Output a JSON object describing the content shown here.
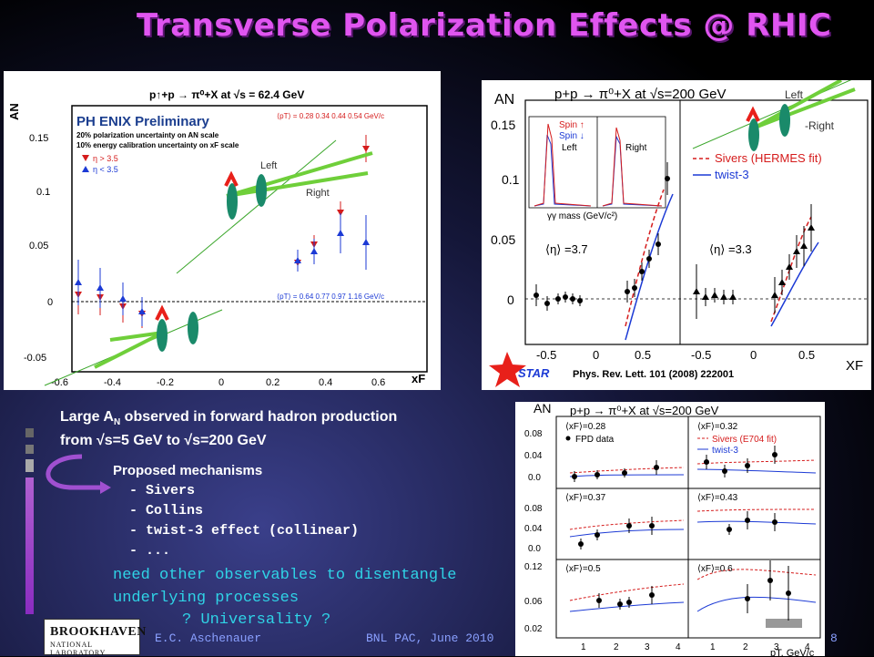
{
  "slide": {
    "title": "Transverse Polarization Effects @ RHIC",
    "footer_author": "E.C. Aschenauer",
    "footer_event": "BNL PAC, June 2010",
    "page_number": "8",
    "logo_main": "BROOKHAVEN",
    "logo_sub": "NATIONAL LABORATORY"
  },
  "bullets": {
    "line1": "Large A",
    "line1_sub": "N",
    "line1_rest": " observed in forward hadron production",
    "line2": "from √s=5 GeV to √s=200 GeV",
    "mech_title": "Proposed mechanisms",
    "mech_items": [
      "- Sivers",
      "- Collins",
      "- twist-3 effect (collinear)",
      "- ..."
    ],
    "need1": "need other observables to disentangle",
    "need2": "underlying processes",
    "universality": "? Universality ?"
  },
  "phenix": {
    "title": "p↑+p → π⁰+X at √s = 62.4 GeV",
    "logo": "PH ENIX Preliminary",
    "note1": "20% polarization uncertainty on AN scale",
    "note2": "10% energy calibration uncertainty on xF scale",
    "legend_eta_hi": "η > 3.5",
    "legend_eta_lo": "η < 3.5",
    "pt_top": "⟨pT⟩ = 0.28  0.34  0.44  0.54 GeV/c",
    "pt_bot": "⟨pT⟩ = 0.64  0.77  0.97  1.16 GeV/c",
    "ylabel": "AN",
    "xlabel": "xF",
    "left_label": "Left",
    "right_label": "Right",
    "x_ticks": [
      "-0.6",
      "-0.4",
      "-0.2",
      "0",
      "0.2",
      "0.4",
      "0.6"
    ],
    "y_ticks": [
      "-0.05",
      "0",
      "0.05",
      "0.1",
      "0.15"
    ]
  },
  "star": {
    "title": "p+p → π⁰+X at √s=200 GeV",
    "ylabel": "AN",
    "xlabel": "XF",
    "inset_legend_up": "Spin ↑",
    "inset_legend_down": "Spin ↓",
    "inset_left": "Left",
    "inset_right": "Right",
    "inset_xlabel": "γγ mass (GeV/c²)",
    "eta_left": "⟨η⟩ =3.7",
    "eta_right": "⟨η⟩ =3.3",
    "legend_sivers": "Sivers (HERMES fit)",
    "legend_twist": "twist-3",
    "reference": "Phys. Rev. Lett. 101 (2008) 222001",
    "star_logo": "STAR",
    "left_label": "Left",
    "right_label": "-Right",
    "y_ticks": [
      "0",
      "0.05",
      "0.1",
      "0.15"
    ],
    "x_ticks": [
      "-0.5",
      "0",
      "0.5",
      "-0.5",
      "0",
      "0.5"
    ]
  },
  "fpd": {
    "title": "p+p → π⁰+X at √s=200 GeV",
    "ylabel": "AN",
    "xlabel": "pT, GeV/c",
    "legend_data": "FPD data",
    "legend_sivers": "Sivers (E704 fit)",
    "legend_twist": "twist-3",
    "xf_labels": [
      "⟨xF⟩=0.28",
      "⟨xF⟩=0.32",
      "⟨xF⟩=0.37",
      "⟨xF⟩=0.43",
      "⟨xF⟩=0.5",
      "⟨xF⟩=0.6"
    ],
    "y_ticks_top": [
      "0.08",
      "0.04",
      "0.0"
    ],
    "y_ticks_mid": [
      "0.08",
      "0.04",
      "0.0"
    ],
    "y_ticks_bot": [
      "0.12",
      "0.06",
      "0.02"
    ],
    "x_ticks": [
      "1",
      "2",
      "3",
      "4",
      "1",
      "2",
      "3",
      "4"
    ]
  },
  "colors": {
    "title": "#e055f0",
    "accent_cyan": "#2fd3e6",
    "arrow_green": "#6fcf3a",
    "arrow_red": "#e8201a"
  }
}
